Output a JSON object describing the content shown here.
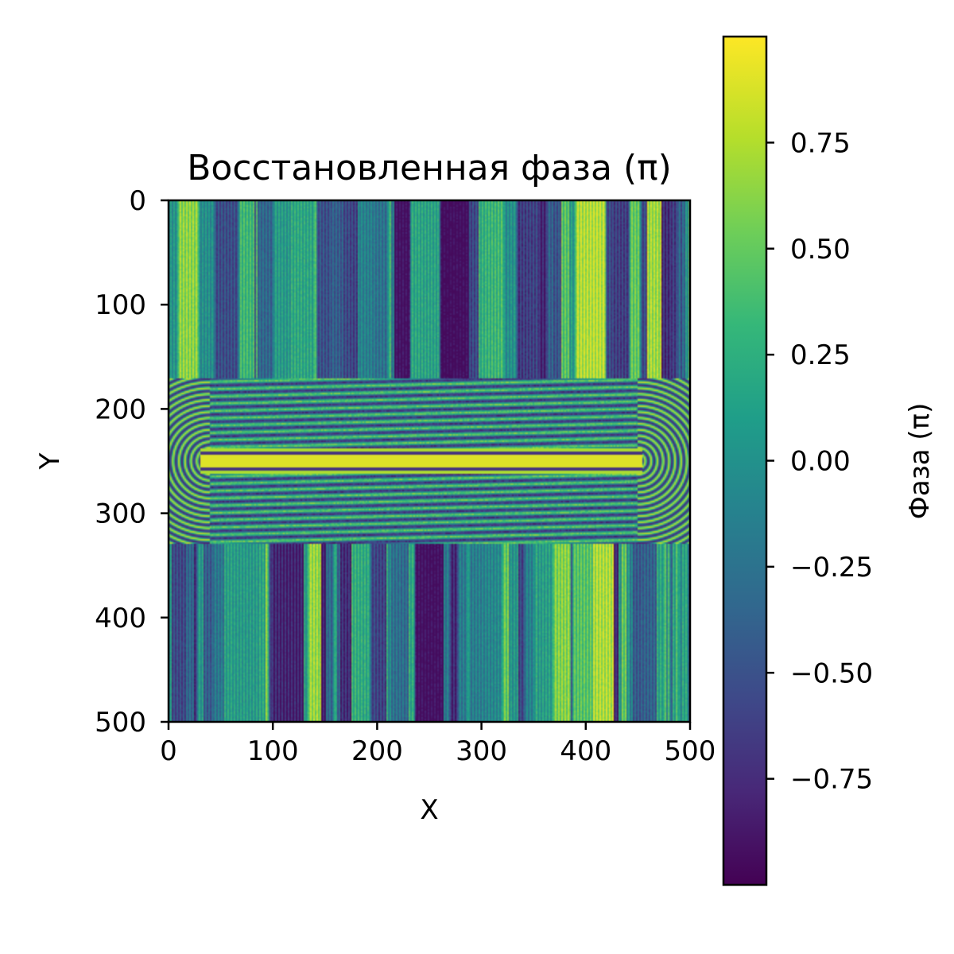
{
  "chart_data": {
    "type": "heatmap",
    "title": "Восстановленная фаза (π)",
    "xlabel": "X",
    "ylabel": "Y",
    "xlim": [
      0,
      500
    ],
    "ylim": [
      500,
      0
    ],
    "x_ticks": [
      "0",
      "100",
      "200",
      "300",
      "400",
      "500"
    ],
    "y_ticks": [
      "0",
      "100",
      "200",
      "300",
      "400",
      "500"
    ],
    "colormap": "viridis",
    "colorbar": {
      "label": "Фаза (π)",
      "range": [
        -1,
        1
      ],
      "ticks": [
        "0.75",
        "0.50",
        "0.25",
        "0.00",
        "−0.25",
        "−0.50",
        "−0.75"
      ],
      "tick_values": [
        0.75,
        0.5,
        0.25,
        0.0,
        -0.25,
        -0.5,
        -0.75
      ],
      "colors": [
        "#440154",
        "#482878",
        "#3e4989",
        "#31688e",
        "#26828e",
        "#1f9e89",
        "#35b779",
        "#6ece58",
        "#b5de2b",
        "#fde725"
      ]
    },
    "features": {
      "central_streak": {
        "x_range": [
          30,
          455
        ],
        "y_center": 250,
        "value": 0.9
      },
      "fringe_band": {
        "y_range": [
          170,
          330
        ]
      }
    }
  }
}
